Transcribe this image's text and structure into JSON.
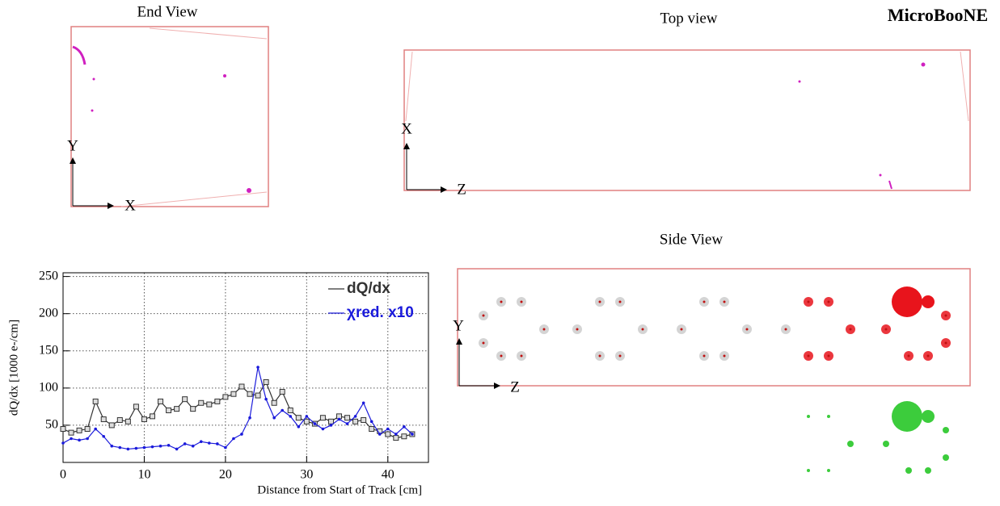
{
  "chart_data": {
    "type": "line",
    "x_label": "Distance from Start of Track [cm]",
    "y_label": "dQ/dx [1000 e-/cm]",
    "x": [
      0,
      1,
      2,
      3,
      4,
      5,
      6,
      7,
      8,
      9,
      10,
      11,
      12,
      13,
      14,
      15,
      16,
      17,
      18,
      19,
      20,
      21,
      22,
      23,
      24,
      25,
      26,
      27,
      28,
      29,
      30,
      31,
      32,
      33,
      34,
      35,
      36,
      37,
      38,
      39,
      40,
      41,
      42,
      43
    ],
    "series": [
      {
        "name": "dQ/dx",
        "color": "#333333",
        "marker": "square",
        "values": [
          45,
          40,
          43,
          45,
          82,
          58,
          50,
          57,
          55,
          75,
          58,
          62,
          82,
          70,
          72,
          85,
          72,
          80,
          78,
          82,
          88,
          92,
          102,
          92,
          90,
          108,
          80,
          95,
          70,
          60,
          55,
          52,
          60,
          55,
          62,
          60,
          55,
          57,
          45,
          42,
          38,
          33,
          35,
          38
        ]
      },
      {
        "name": "χred. x10",
        "color": "#1a1adb",
        "marker": "dot",
        "values": [
          26,
          32,
          30,
          32,
          45,
          35,
          22,
          20,
          18,
          19,
          20,
          21,
          22,
          23,
          18,
          25,
          22,
          28,
          26,
          25,
          20,
          32,
          38,
          60,
          128,
          85,
          60,
          70,
          62,
          48,
          62,
          52,
          45,
          50,
          58,
          52,
          62,
          80,
          55,
          38,
          45,
          38,
          48,
          38
        ]
      }
    ],
    "xlim": [
      0,
      45
    ],
    "ylim": [
      0,
      255
    ],
    "xticks": [
      0,
      10,
      20,
      30,
      40
    ],
    "yticks": [
      50,
      100,
      150,
      200,
      250
    ],
    "grid": true,
    "legend": "top-right"
  },
  "event_display": {
    "title": "MicroBooNE",
    "end_view": {
      "title": "End View",
      "axes": [
        "X",
        "Y"
      ]
    },
    "top_view": {
      "title": "Top view",
      "axes": [
        "Z",
        "X"
      ]
    },
    "side_view": {
      "title": "Side View",
      "axes": [
        "Z",
        "Y"
      ]
    }
  }
}
